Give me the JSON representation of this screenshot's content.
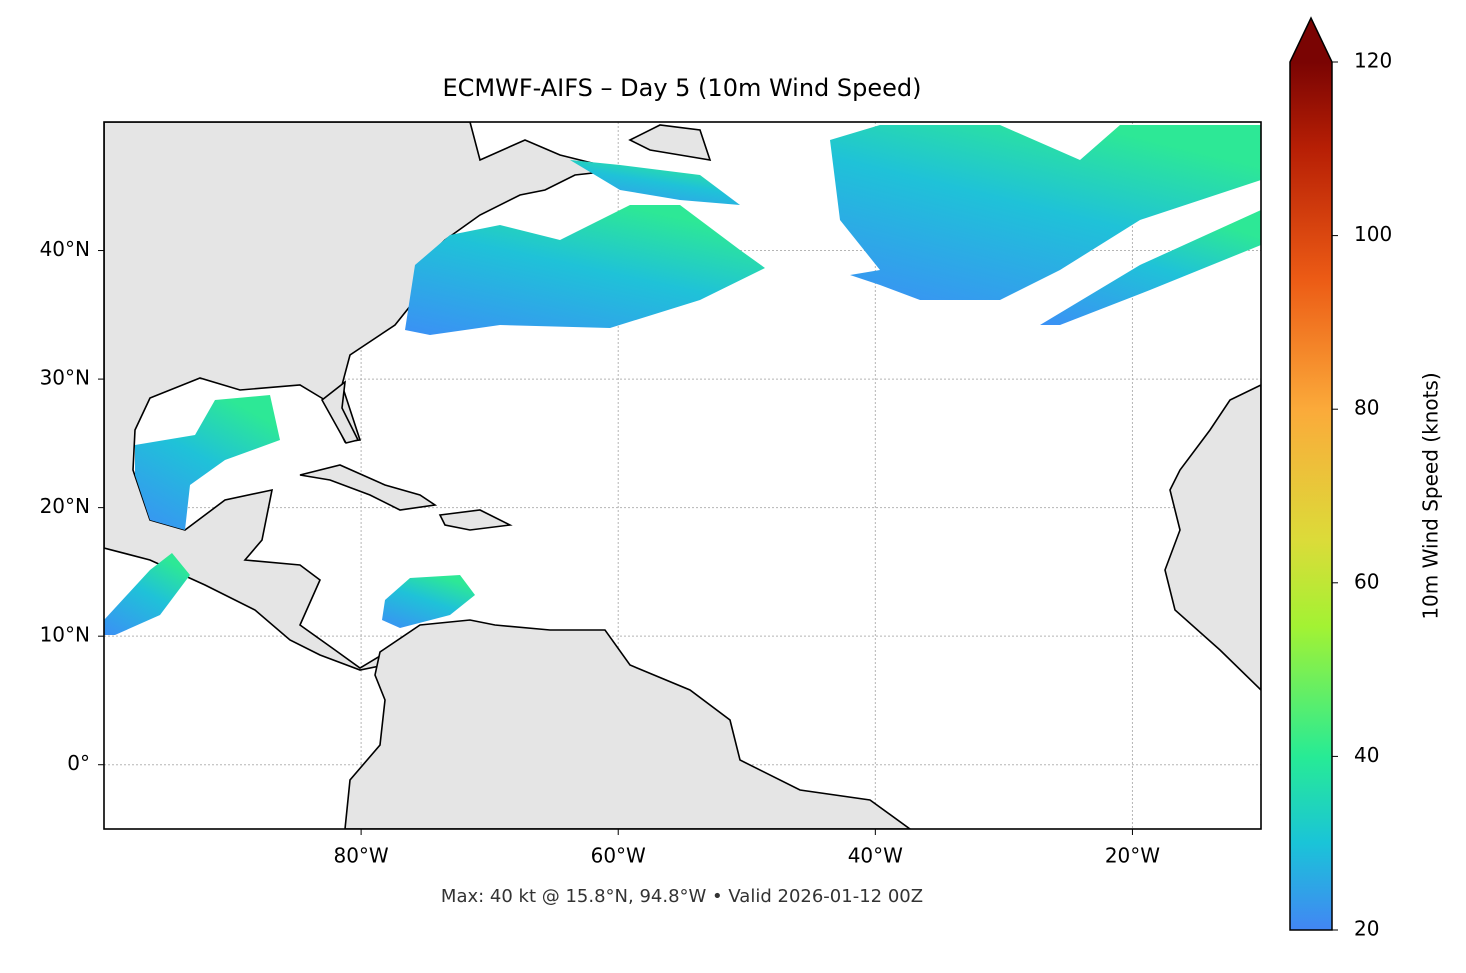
{
  "map": {
    "title": "ECMWF-AIFS – Day 5 (10m Wind Speed)",
    "xlim": [
      -100,
      -10
    ],
    "ylim": [
      -5,
      50
    ],
    "xticks": [
      {
        "value": -80,
        "label": "80°W"
      },
      {
        "value": -60,
        "label": "60°W"
      },
      {
        "value": -40,
        "label": "40°W"
      },
      {
        "value": -20,
        "label": "20°W"
      }
    ],
    "yticks": [
      {
        "value": 0,
        "label": "0°"
      },
      {
        "value": 10,
        "label": "10°N"
      },
      {
        "value": 20,
        "label": "20°N"
      },
      {
        "value": 30,
        "label": "30°N"
      },
      {
        "value": 40,
        "label": "40°N"
      }
    ],
    "grid": true,
    "footer": "Max: 40 kt @ 15.8°N, 94.8°W • Valid 2026-01-12 00Z"
  },
  "colorbar": {
    "label": "10m Wind Speed (knots)",
    "lim": [
      20,
      120
    ],
    "ticks": [
      20,
      40,
      60,
      80,
      100,
      120
    ],
    "extend": "max"
  }
}
